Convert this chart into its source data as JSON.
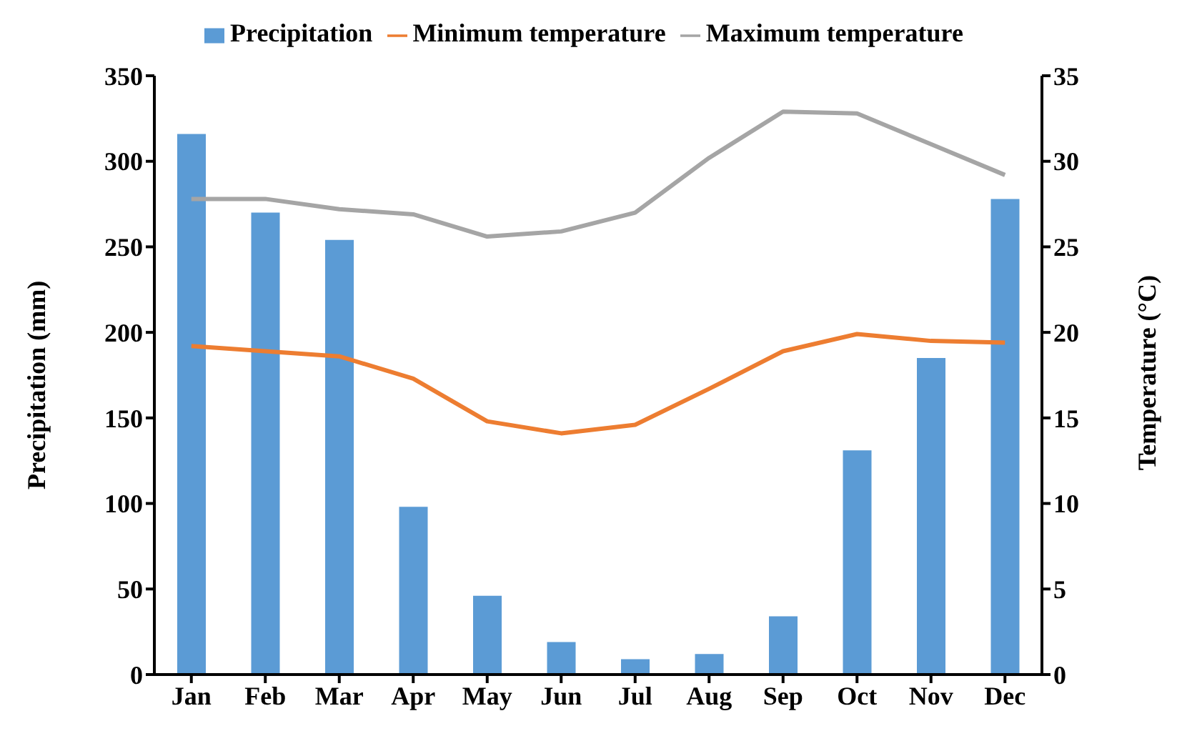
{
  "chart_data": {
    "type": "bar",
    "categories": [
      "Jan",
      "Feb",
      "Mar",
      "Apr",
      "May",
      "Jun",
      "Jul",
      "Aug",
      "Sep",
      "Oct",
      "Nov",
      "Dec"
    ],
    "ylabel": "Precipitation (mm)",
    "y2label": "Temperature (°C)",
    "ylim": [
      0,
      350
    ],
    "yticks": [
      0,
      50,
      100,
      150,
      200,
      250,
      300,
      350
    ],
    "y2lim": [
      0,
      35
    ],
    "y2ticks": [
      0,
      5,
      10,
      15,
      20,
      25,
      30,
      35
    ],
    "legend": "top",
    "grid": false,
    "marker": "none",
    "series": [
      {
        "name": "Precipitation",
        "color": "#5b9bd5",
        "values": [
          316,
          270,
          254,
          98,
          46,
          19,
          9,
          12,
          34,
          131,
          185,
          278
        ]
      },
      {
        "name": "Minimum temperature",
        "type": "line",
        "axis": "y2",
        "color": "#ed7d31",
        "values": [
          19.2,
          18.9,
          18.6,
          17.3,
          14.8,
          14.1,
          14.6,
          16.7,
          18.9,
          19.9,
          19.5,
          19.4
        ]
      },
      {
        "name": "Maximum temperature",
        "type": "line",
        "axis": "y2",
        "color": "#a5a5a5",
        "values": [
          27.8,
          27.8,
          27.2,
          26.9,
          25.6,
          25.9,
          27.0,
          30.2,
          32.9,
          32.8,
          31.0,
          29.2
        ]
      }
    ]
  }
}
